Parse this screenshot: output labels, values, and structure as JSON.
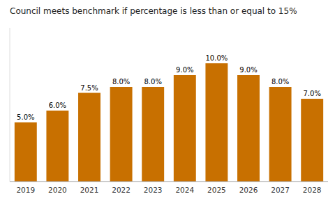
{
  "chart_data": {
    "type": "bar",
    "title": "Council meets benchmark if percentage is less than or equal to 15%",
    "categories": [
      "2019",
      "2020",
      "2021",
      "2022",
      "2023",
      "2024",
      "2025",
      "2026",
      "2027",
      "2028"
    ],
    "values": [
      5.0,
      6.0,
      7.5,
      8.0,
      8.0,
      9.0,
      10.0,
      9.0,
      8.0,
      7.0
    ],
    "value_labels": [
      "5.0%",
      "6.0%",
      "7.5%",
      "8.0%",
      "8.0%",
      "9.0%",
      "10.0%",
      "9.0%",
      "8.0%",
      "7.0%"
    ],
    "color": "#C87000",
    "ylim": [
      0,
      13
    ],
    "data_labels": true,
    "tick_labels": "x",
    "grid": false
  }
}
